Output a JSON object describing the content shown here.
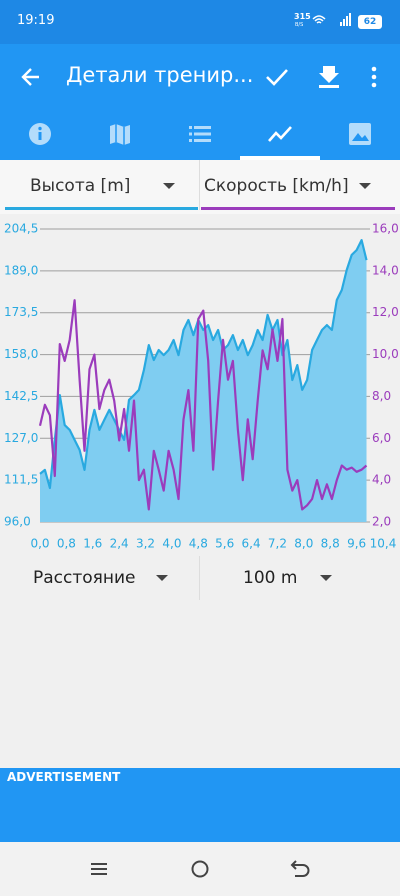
{
  "status": {
    "time": "19:19",
    "net_speed": "315",
    "net_unit": "B/S",
    "battery": "62"
  },
  "appbar": {
    "title": "Детали трениp..."
  },
  "chart_data": {
    "type": "line",
    "x": [
      0,
      0.15,
      0.3,
      0.45,
      0.6,
      0.75,
      0.9,
      1.05,
      1.2,
      1.35,
      1.5,
      1.65,
      1.8,
      1.95,
      2.1,
      2.25,
      2.4,
      2.55,
      2.7,
      2.85,
      3,
      3.15,
      3.3,
      3.45,
      3.6,
      3.75,
      3.9,
      4.05,
      4.2,
      4.35,
      4.5,
      4.65,
      4.8,
      4.95,
      5.1,
      5.25,
      5.4,
      5.55,
      5.7,
      5.85,
      6,
      6.15,
      6.3,
      6.45,
      6.6,
      6.75,
      6.9,
      7.05,
      7.2,
      7.35,
      7.5,
      7.65,
      7.8,
      7.95,
      8.1,
      8.25,
      8.4,
      8.55,
      8.7,
      8.85,
      9,
      9.15,
      9.3,
      9.45,
      9.6,
      9.75,
      9.9
    ],
    "series": [
      {
        "name": "Высота [m]",
        "color": "#29a9e0",
        "fill": "#7fcdf1",
        "area": true,
        "values": [
          113.8,
          115.3,
          108.6,
          126.4,
          143.0,
          131.9,
          130.1,
          126.4,
          122.7,
          115.3,
          130.1,
          137.5,
          130.1,
          133.8,
          137.5,
          133.8,
          130.1,
          126.4,
          141.2,
          143.0,
          144.9,
          152.3,
          161.5,
          156.0,
          159.7,
          157.8,
          159.7,
          163.4,
          157.8,
          167.1,
          170.8,
          165.2,
          170.8,
          167.1,
          168.9,
          163.4,
          167.1,
          159.7,
          161.5,
          165.2,
          159.7,
          163.4,
          157.8,
          161.5,
          167.1,
          163.4,
          172.7,
          167.1,
          170.8,
          157.8,
          163.4,
          148.6,
          154.1,
          144.9,
          148.6,
          159.7,
          163.4,
          167.1,
          168.9,
          167.1,
          178.2,
          181.9,
          189.3,
          194.9,
          196.7,
          200.4,
          193.0
        ]
      },
      {
        "name": "Скорость [km/h]",
        "color": "#9b3cbc",
        "axis": "y2",
        "values": [
          6.6,
          7.6,
          7.1,
          4.2,
          10.5,
          9.7,
          10.7,
          12.6,
          8.8,
          5.4,
          9.3,
          10.0,
          7.4,
          8.3,
          8.8,
          7.8,
          5.9,
          7.4,
          5.4,
          7.8,
          4.0,
          4.5,
          2.6,
          5.4,
          4.5,
          3.5,
          5.4,
          4.5,
          3.1,
          6.9,
          8.3,
          5.4,
          11.7,
          12.1,
          9.7,
          4.5,
          7.8,
          10.7,
          8.8,
          9.7,
          6.4,
          4.0,
          6.9,
          5.0,
          7.8,
          10.2,
          9.3,
          11.2,
          9.7,
          11.7,
          4.5,
          3.5,
          4.0,
          2.6,
          2.8,
          3.1,
          4.0,
          3.1,
          3.8,
          3.1,
          4.0,
          4.7,
          4.5,
          4.6,
          4.4,
          4.5,
          4.7
        ]
      }
    ],
    "xlim": [
      0,
      10.4
    ],
    "xticks": [
      {
        "value": 0,
        "label": "0,0"
      },
      {
        "value": 0.8,
        "label": "0,8"
      },
      {
        "value": 1.6,
        "label": "1,6"
      },
      {
        "value": 2.4,
        "label": "2,4"
      },
      {
        "value": 3.2,
        "label": "3,2"
      },
      {
        "value": 4,
        "label": "4,0"
      },
      {
        "value": 4.8,
        "label": "4,8"
      },
      {
        "value": 5.6,
        "label": "5,6"
      },
      {
        "value": 6.4,
        "label": "6,4"
      },
      {
        "value": 7.2,
        "label": "7,2"
      },
      {
        "value": 8,
        "label": "8,0"
      },
      {
        "value": 8.8,
        "label": "8,8"
      },
      {
        "value": 9.6,
        "label": "9,6"
      },
      {
        "value": 10.4,
        "label": "10,4"
      }
    ],
    "ylim": [
      96,
      204.5
    ],
    "yticks": [
      {
        "value": 96,
        "label": "96,0"
      },
      {
        "value": 111.5,
        "label": "111,5"
      },
      {
        "value": 127,
        "label": "127,0"
      },
      {
        "value": 142.5,
        "label": "142,5"
      },
      {
        "value": 158,
        "label": "158,0"
      },
      {
        "value": 173.5,
        "label": "173,5"
      },
      {
        "value": 189,
        "label": "189,0"
      },
      {
        "value": 204.5,
        "label": "204,5"
      }
    ],
    "y2lim": [
      2,
      16
    ],
    "y2ticks": [
      {
        "value": 2,
        "label": "2,0"
      },
      {
        "value": 4,
        "label": "4,0"
      },
      {
        "value": 6,
        "label": "6,0"
      },
      {
        "value": 8,
        "label": "8,0"
      },
      {
        "value": 10,
        "label": "10,0"
      },
      {
        "value": 12,
        "label": "12,0"
      },
      {
        "value": 14,
        "label": "14,0"
      },
      {
        "value": 16,
        "label": "16,0"
      }
    ],
    "grid": true
  },
  "controls": {
    "x_axis": "Расстояние",
    "step": "100 m"
  },
  "ad": {
    "label": "ADVERTISEMENT"
  }
}
